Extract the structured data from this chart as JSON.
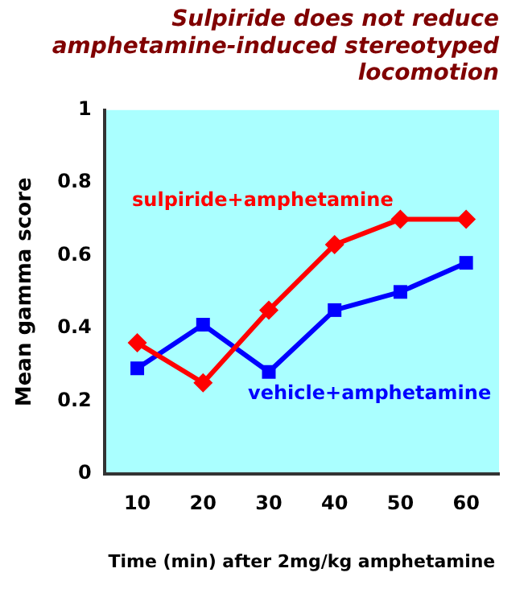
{
  "chart_data": {
    "type": "line",
    "title": "Sulpiride does not reduce\namphetamine-induced stereotyped\nlocomotion",
    "xlabel": "Time (min) after 2mg/kg amphetamine",
    "ylabel": "Mean gamma score",
    "categories": [
      "10",
      "20",
      "30",
      "40",
      "50",
      "60"
    ],
    "series": [
      {
        "name": "sulpiride+amphetamine",
        "color": "#ff0000",
        "marker": "diamond",
        "values": [
          0.36,
          0.25,
          0.45,
          0.63,
          0.7,
          0.7
        ]
      },
      {
        "name": "vehicle+amphetamine",
        "color": "#0000ff",
        "marker": "square",
        "values": [
          0.29,
          0.41,
          0.28,
          0.45,
          0.5,
          0.58
        ]
      }
    ],
    "ylim": [
      0,
      1
    ],
    "yticks": [
      0,
      0.2,
      0.4,
      0.6,
      0.8,
      1
    ],
    "grid": false,
    "legend": false
  }
}
